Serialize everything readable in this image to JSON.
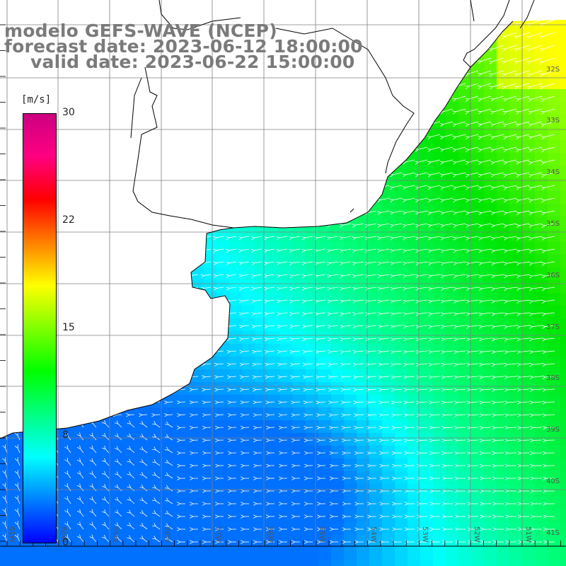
{
  "title": {
    "line1": "modelo GEFS-WAVE (NCEP)",
    "line2": "forecast date: 2023-06-12 18:00:00",
    "line3": "valid date: 2023-06-22 15:00:00"
  },
  "colorbar": {
    "unit": "[m/s]",
    "ticks": [
      "30",
      "22",
      "15",
      "8",
      "0"
    ],
    "colors": [
      "#0000ff",
      "#0080ff",
      "#00ffff",
      "#00ff80",
      "#00ff00",
      "#80ff00",
      "#ffff00",
      "#ff8000",
      "#ff0000",
      "#ff0080",
      "#cc0080"
    ]
  },
  "map": {
    "lat_labels": [
      "32S",
      "33S",
      "34S",
      "35S",
      "36S",
      "37S",
      "38S",
      "39S",
      "40S",
      "41S"
    ],
    "lon_labels": [
      "61W",
      "60W",
      "59W",
      "58W",
      "57W",
      "56W",
      "55W",
      "54W",
      "53W",
      "52W",
      "51W"
    ],
    "land_color": "#ffffff",
    "coast_color": "#000000",
    "grid_color": "#808080",
    "arrow_color": "#ffffff"
  }
}
